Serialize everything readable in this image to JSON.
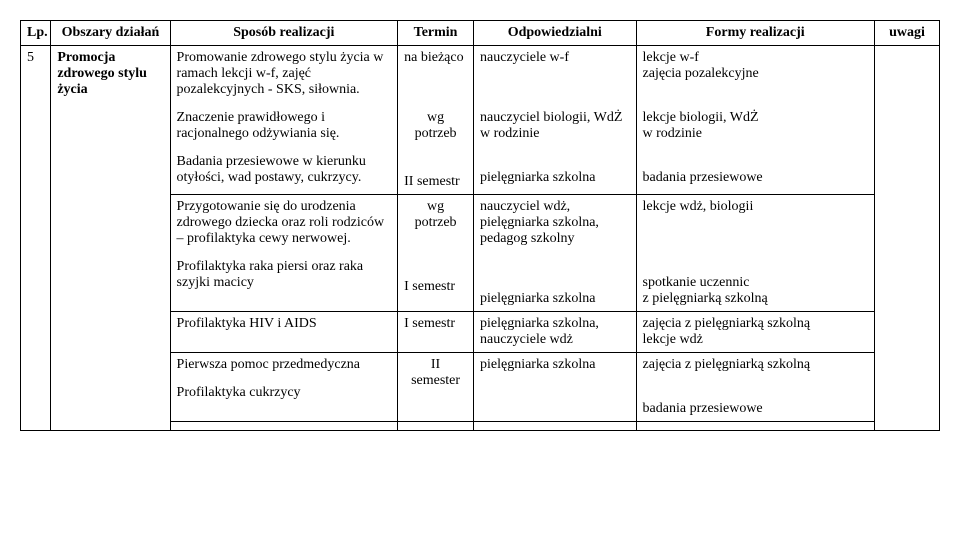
{
  "headers": {
    "lp": "Lp.",
    "obszar": "Obszary działań",
    "sposob": "Sposób realizacji",
    "termin": "Termin",
    "odp": "Odpowiedzialni",
    "formy": "Formy realizacji",
    "uwagi": "uwagi"
  },
  "row": {
    "lp": "5",
    "obszar": "Promocja zdrowego stylu życia",
    "sposob1": "Promowanie zdrowego stylu życia w ramach lekcji w-f, zajęć pozalekcyjnych - SKS, siłownia.",
    "termin1": "na bieżąco",
    "odp1": "nauczyciele w-f",
    "formy1a": "lekcje w-f",
    "formy1b": "zajęcia  pozalekcyjne",
    "sposob2": "Znaczenie prawidłowego i racjonalnego odżywiania się.",
    "termin2a": "wg",
    "termin2b": "potrzeb",
    "odp2": "nauczyciel  biologii, WdŻ w rodzinie",
    "formy2a": "lekcje biologii, WdŻ",
    "formy2b": " w rodzinie",
    "sposob3": "Badania przesiewowe w kierunku otyłości, wad postawy, cukrzycy.",
    "termin3": "II semestr",
    "odp3": "pielęgniarka szkolna",
    "formy3": "badania przesiewowe",
    "sposob4a": "Przygotowanie się do urodzenia zdrowego dziecka oraz roli rodziców",
    "sposob4b": "– profilaktyka cewy nerwowej.",
    "termin4a": "wg",
    "termin4b": "potrzeb",
    "odp4": "nauczyciel wdż, pielęgniarka szkolna, pedagog szkolny",
    "formy4": "lekcje wdż, biologii",
    "sposob5": "Profilaktyka raka piersi oraz raka szyjki macicy",
    "termin5": "I semestr",
    "odp5": "pielęgniarka szkolna",
    "formy5a": "spotkanie uczennic",
    "formy5b": "z pielęgniarką szkolną",
    "sposob6": "Profilaktyka HIV i AIDS",
    "termin6": "I semestr",
    "odp6": "pielęgniarka szkolna, nauczyciele wdż",
    "formy6a": "zajęcia z pielęgniarką szkolną",
    "formy6b": "lekcje wdż",
    "sposob7": "Pierwsza pomoc przedmedyczna",
    "termin7a": "II",
    "termin7b": "semester",
    "odp7": "pielęgniarka szkolna",
    "formy7": "zajęcia z pielęgniarką szkolną",
    "sposob8": "Profilaktyka cukrzycy",
    "formy8": "badania przesiewowe"
  }
}
